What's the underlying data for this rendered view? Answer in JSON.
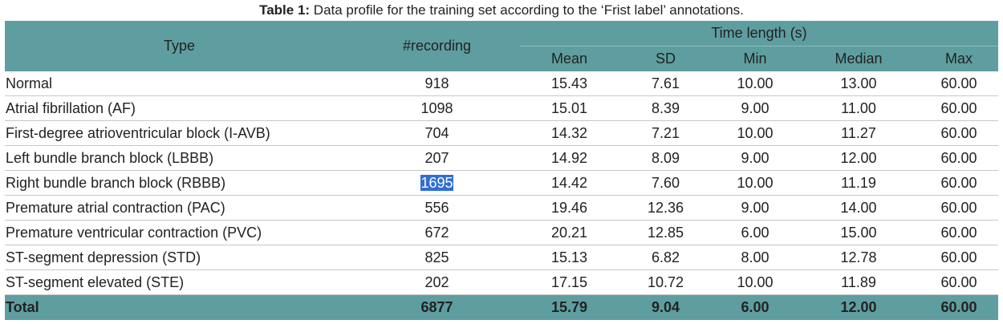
{
  "caption": {
    "label": "Table 1:",
    "text": " Data profile for the training set according to the ‘Frist label’ annotations."
  },
  "headers": {
    "type": "Type",
    "recording": "#recording",
    "time_group": "Time length (s)",
    "mean": "Mean",
    "sd": "SD",
    "min": "Min",
    "median": "Median",
    "max": "Max"
  },
  "rows": [
    {
      "type": "Normal",
      "recording": "918",
      "mean": "15.43",
      "sd": "7.61",
      "min": "10.00",
      "median": "13.00",
      "max": "60.00"
    },
    {
      "type": "Atrial fibrillation (AF)",
      "recording": "1098",
      "mean": "15.01",
      "sd": "8.39",
      "min": "9.00",
      "median": "11.00",
      "max": "60.00"
    },
    {
      "type": "First-degree atrioventricular block (I-AVB)",
      "recording": "704",
      "mean": "14.32",
      "sd": "7.21",
      "min": "10.00",
      "median": "11.27",
      "max": "60.00"
    },
    {
      "type": "Left bundle branch block (LBBB)",
      "recording": "207",
      "mean": "14.92",
      "sd": "8.09",
      "min": "9.00",
      "median": "12.00",
      "max": "60.00"
    },
    {
      "type": "Right bundle branch block (RBBB)",
      "recording": "1695",
      "mean": "14.42",
      "sd": "7.60",
      "min": "10.00",
      "median": "11.19",
      "max": "60.00"
    },
    {
      "type": "Premature atrial contraction (PAC)",
      "recording": "556",
      "mean": "19.46",
      "sd": "12.36",
      "min": "9.00",
      "median": "14.00",
      "max": "60.00"
    },
    {
      "type": "Premature ventricular contraction (PVC)",
      "recording": "672",
      "mean": "20.21",
      "sd": "12.85",
      "min": "6.00",
      "median": "15.00",
      "max": "60.00"
    },
    {
      "type": "ST-segment depression (STD)",
      "recording": "825",
      "mean": "15.13",
      "sd": "6.82",
      "min": "8.00",
      "median": "12.78",
      "max": "60.00"
    },
    {
      "type": "ST-segment elevated (STE)",
      "recording": "202",
      "mean": "17.15",
      "sd": "10.72",
      "min": "10.00",
      "median": "11.89",
      "max": "60.00"
    }
  ],
  "total": {
    "type": "Total",
    "recording": "6877",
    "mean": "15.79",
    "sd": "9.04",
    "min": "6.00",
    "median": "12.00",
    "max": "60.00"
  },
  "selection": {
    "row_index": 4,
    "field": "recording",
    "highlight_color": "#2f6fd6"
  }
}
